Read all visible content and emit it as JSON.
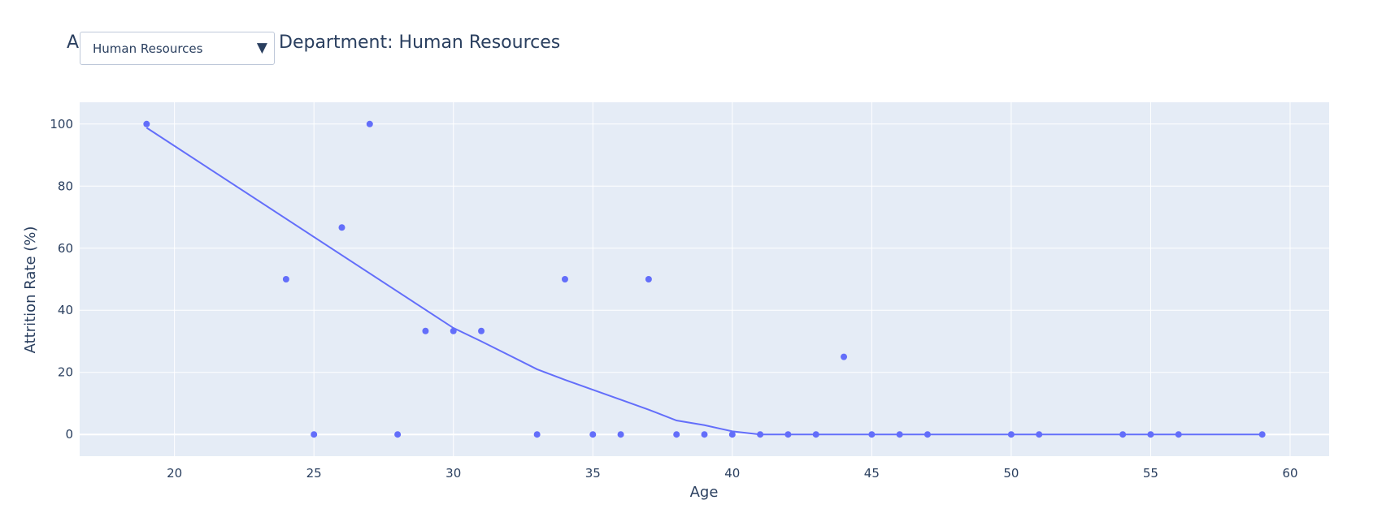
{
  "header": {
    "title_prefix": "A",
    "title_suffix": "Department: Human Resources"
  },
  "dropdown": {
    "selected": "Human Resources",
    "arrow_icon": "triangle-down-icon"
  },
  "colors": {
    "plot_bg": "#e5ecf6",
    "grid": "#ffffff",
    "marker": "#636efa",
    "text": "#2a3f5f"
  },
  "chart_data": {
    "type": "scatter",
    "title": "Department: Human Resources",
    "xlabel": "Age",
    "ylabel": "Attrition Rate (%)",
    "xlim": [
      16.6,
      61.4
    ],
    "ylim": [
      -7,
      107
    ],
    "xticks": [
      20,
      25,
      30,
      35,
      40,
      45,
      50,
      55,
      60
    ],
    "yticks": [
      0,
      20,
      40,
      60,
      80,
      100
    ],
    "grid": true,
    "legend": false,
    "series": [
      {
        "mode": "markers",
        "x": [
          19,
          24,
          25,
          26,
          27,
          28,
          29,
          30,
          31,
          33,
          34,
          35,
          36,
          37,
          38,
          39,
          40,
          41,
          42,
          43,
          44,
          45,
          46,
          47,
          50,
          51,
          54,
          55,
          56,
          59
        ],
        "y": [
          100,
          50,
          0,
          66.67,
          100,
          0,
          33.33,
          33.33,
          33.33,
          0,
          50,
          0,
          0,
          50,
          0,
          0,
          0,
          0,
          0,
          0,
          25,
          0,
          0,
          0,
          0,
          0,
          0,
          0,
          0,
          0
        ]
      },
      {
        "mode": "lines",
        "x": [
          19,
          30,
          31,
          33,
          34,
          37,
          38,
          39,
          40,
          41,
          59
        ],
        "y": [
          98.8,
          34.3,
          30,
          21,
          17.6,
          8,
          4.5,
          3,
          1,
          0,
          0
        ]
      }
    ]
  }
}
